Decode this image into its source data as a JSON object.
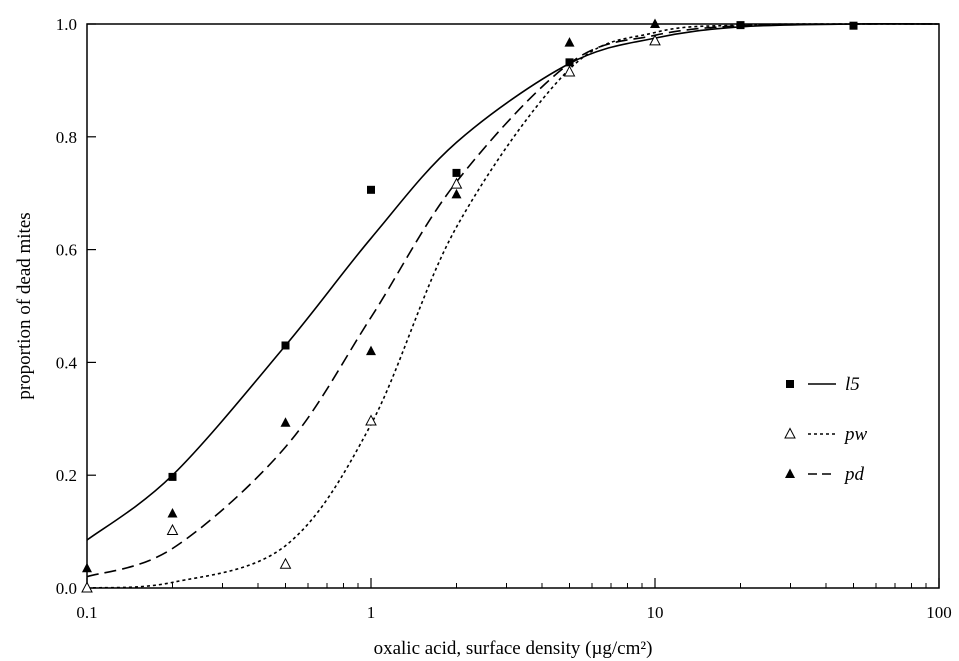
{
  "chart_data": {
    "type": "scatter",
    "xlabel": "oxalic acid, surface density (µg/cm²)",
    "ylabel": "proportion of dead mites",
    "xscale": "log",
    "xlim": [
      0.1,
      100
    ],
    "ylim": [
      0,
      1
    ],
    "xticks": [
      0.1,
      1,
      10,
      100
    ],
    "xtick_labels": [
      "0.1",
      "1",
      "10",
      "100"
    ],
    "yticks": [
      0,
      0.2,
      0.4,
      0.6,
      0.8,
      1.0
    ],
    "ytick_labels": [
      "0.0",
      "0.2",
      "0.4",
      "0.6",
      "0.8",
      "1.0"
    ],
    "grid": false,
    "legend_position": "right",
    "series": [
      {
        "name": "l5",
        "marker": "filled-square",
        "line": "solid",
        "points": [
          [
            0.2,
            0.197
          ],
          [
            0.5,
            0.43
          ],
          [
            1,
            0.706
          ],
          [
            2,
            0.736
          ],
          [
            5,
            0.932
          ],
          [
            20,
            0.998
          ],
          [
            50,
            0.997
          ]
        ],
        "fit": [
          [
            0.1,
            0.085
          ],
          [
            0.2,
            0.2
          ],
          [
            0.5,
            0.43
          ],
          [
            1,
            0.62
          ],
          [
            2,
            0.79
          ],
          [
            5,
            0.93
          ],
          [
            10,
            0.975
          ],
          [
            20,
            0.995
          ],
          [
            50,
            1.0
          ],
          [
            100,
            1.0
          ]
        ]
      },
      {
        "name": "pw",
        "marker": "open-triangle",
        "line": "dotted",
        "points": [
          [
            0.1,
            0.0
          ],
          [
            0.2,
            0.102
          ],
          [
            0.5,
            0.042
          ],
          [
            1,
            0.296
          ],
          [
            2,
            0.716
          ],
          [
            5,
            0.915
          ],
          [
            10,
            0.97
          ]
        ],
        "fit": [
          [
            0.1,
            0.0
          ],
          [
            0.2,
            0.01
          ],
          [
            0.5,
            0.075
          ],
          [
            1,
            0.29
          ],
          [
            2,
            0.64
          ],
          [
            5,
            0.92
          ],
          [
            10,
            0.985
          ],
          [
            20,
            0.998
          ],
          [
            50,
            1.0
          ],
          [
            100,
            1.0
          ]
        ]
      },
      {
        "name": "pd",
        "marker": "filled-triangle",
        "line": "dashed",
        "points": [
          [
            0.1,
            0.035
          ],
          [
            0.2,
            0.132
          ],
          [
            0.5,
            0.293
          ],
          [
            1,
            0.42
          ],
          [
            2,
            0.698
          ],
          [
            5,
            0.967
          ],
          [
            10,
            1.0
          ]
        ],
        "fit": [
          [
            0.1,
            0.02
          ],
          [
            0.2,
            0.07
          ],
          [
            0.5,
            0.25
          ],
          [
            1,
            0.48
          ],
          [
            2,
            0.72
          ],
          [
            5,
            0.93
          ],
          [
            10,
            0.98
          ],
          [
            20,
            0.997
          ],
          [
            50,
            1.0
          ],
          [
            100,
            1.0
          ]
        ]
      }
    ]
  }
}
